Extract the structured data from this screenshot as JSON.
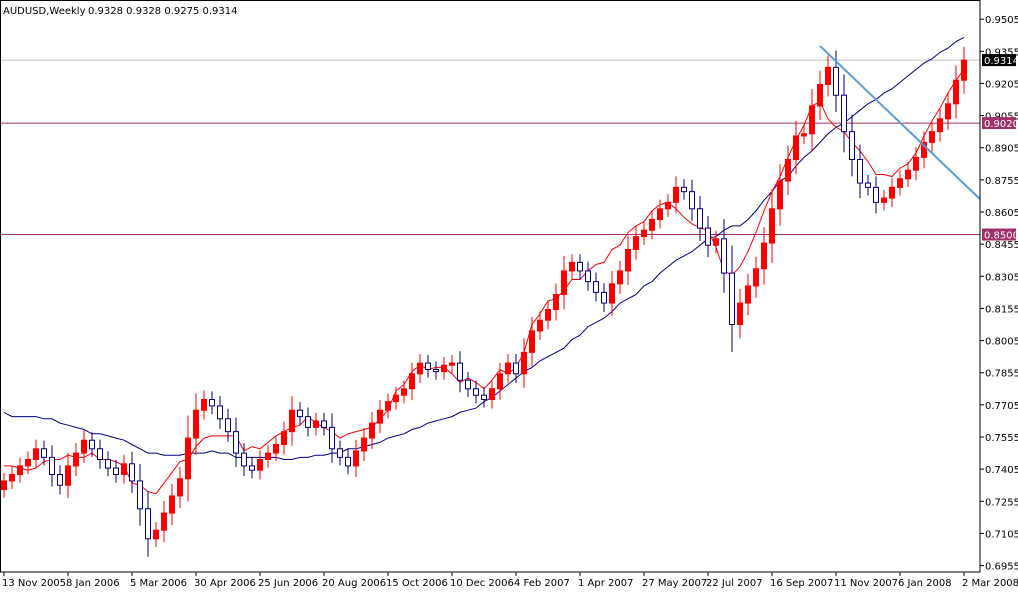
{
  "header": {
    "symbol": "AUDUSD,Weekly",
    "ohlc": "0.9328 0.9328 0.9275 0.9314"
  },
  "colors": {
    "background": "#ffffff",
    "frame": "#000000",
    "bull_candle": "#ff0000",
    "bear_candle": "#000080",
    "ma_fast": "#ff0000",
    "ma_slow": "#000080",
    "trendline": "#5b9bd5",
    "horizontal_level": "#a0306a",
    "current_price_line": "#c0c0c0"
  },
  "chart_data": {
    "type": "candlestick",
    "title": "AUDUSD,Weekly",
    "timeframe": "Weekly",
    "ylim": [
      0.6925,
      0.9585
    ],
    "y_tick_labels": [
      "0.9505",
      "0.9355",
      "0.9205",
      "0.9055",
      "0.8905",
      "0.8755",
      "0.8605",
      "0.8455",
      "0.8305",
      "0.8155",
      "0.8005",
      "0.7855",
      "0.7705",
      "0.7555",
      "0.7405",
      "0.7255",
      "0.7105",
      "0.6955"
    ],
    "x_tick_labels": [
      "13 Nov 2005",
      "8 Jan 2006",
      "5 Mar 2006",
      "30 Apr 2006",
      "25 Jun 2006",
      "20 Aug 2006",
      "15 Oct 2006",
      "10 Dec 2006",
      "4 Feb 2007",
      "1 Apr 2007",
      "27 May 2007",
      "22 Jul 2007",
      "16 Sep 2007",
      "11 Nov 2007",
      "6 Jan 2008",
      "2 Mar 2008"
    ],
    "x_tick_weeks": [
      0,
      8,
      16,
      24,
      32,
      40,
      48,
      56,
      64,
      72,
      80,
      88,
      96,
      104,
      112,
      120
    ],
    "last_week_index": 120,
    "last_price": 0.9314,
    "horizontal_levels": [
      {
        "value": 0.902,
        "label": "0.9020"
      },
      {
        "value": 0.85,
        "label": "0.8500"
      }
    ],
    "current_price_label": "0.9314",
    "trendline": {
      "start": {
        "week": 102,
        "price": 0.938
      },
      "end": {
        "week": 125,
        "price": 0.8665
      }
    },
    "grid": false,
    "legend": "none",
    "weeks_per_tick": 8,
    "close_values": [
      0.735,
      0.738,
      0.742,
      0.745,
      0.75,
      0.746,
      0.738,
      0.733,
      0.742,
      0.748,
      0.754,
      0.75,
      0.745,
      0.741,
      0.738,
      0.743,
      0.735,
      0.722,
      0.708,
      0.712,
      0.72,
      0.728,
      0.736,
      0.755,
      0.768,
      0.773,
      0.77,
      0.764,
      0.758,
      0.748,
      0.742,
      0.74,
      0.745,
      0.748,
      0.752,
      0.758,
      0.768,
      0.765,
      0.76,
      0.763,
      0.76,
      0.75,
      0.746,
      0.742,
      0.749,
      0.755,
      0.762,
      0.768,
      0.772,
      0.775,
      0.778,
      0.785,
      0.79,
      0.787,
      0.786,
      0.789,
      0.79,
      0.782,
      0.778,
      0.775,
      0.773,
      0.778,
      0.785,
      0.79,
      0.785,
      0.795,
      0.805,
      0.81,
      0.815,
      0.822,
      0.833,
      0.837,
      0.833,
      0.828,
      0.823,
      0.818,
      0.827,
      0.833,
      0.843,
      0.849,
      0.852,
      0.857,
      0.862,
      0.865,
      0.872,
      0.87,
      0.862,
      0.853,
      0.845,
      0.848,
      0.832,
      0.808,
      0.818,
      0.826,
      0.834,
      0.846,
      0.862,
      0.875,
      0.885,
      0.896,
      0.897,
      0.91,
      0.92,
      0.928,
      0.915,
      0.898,
      0.885,
      0.874,
      0.872,
      0.865,
      0.867,
      0.872,
      0.876,
      0.88,
      0.886,
      0.893,
      0.898,
      0.904,
      0.911,
      0.922,
      0.9314
    ],
    "ma_fast_values": [
      0.742,
      0.742,
      0.741,
      0.74,
      0.741,
      0.744,
      0.745,
      0.745,
      0.747,
      0.746,
      0.746,
      0.748,
      0.745,
      0.745,
      0.744,
      0.742,
      0.734,
      0.733,
      0.73,
      0.729,
      0.734,
      0.739,
      0.744,
      0.745,
      0.751,
      0.755,
      0.756,
      0.756,
      0.756,
      0.756,
      0.749,
      0.751,
      0.75,
      0.753,
      0.756,
      0.758,
      0.76,
      0.761,
      0.765,
      0.762,
      0.76,
      0.758,
      0.755,
      0.757,
      0.758,
      0.759,
      0.76,
      0.764,
      0.768,
      0.777,
      0.78,
      0.786,
      0.789,
      0.787,
      0.788,
      0.788,
      0.785,
      0.781,
      0.783,
      0.781,
      0.778,
      0.782,
      0.787,
      0.785,
      0.788,
      0.795,
      0.808,
      0.813,
      0.819,
      0.82,
      0.824,
      0.829,
      0.829,
      0.833,
      0.836,
      0.837,
      0.843,
      0.845,
      0.851,
      0.854,
      0.856,
      0.861,
      0.864,
      0.865,
      0.862,
      0.858,
      0.855,
      0.853,
      0.852,
      0.844,
      0.833,
      0.831,
      0.835,
      0.842,
      0.851,
      0.861,
      0.87,
      0.877,
      0.886,
      0.894,
      0.901,
      0.91,
      0.912,
      0.904,
      0.9,
      0.898,
      0.893,
      0.889,
      0.884,
      0.878,
      0.878,
      0.877,
      0.881,
      0.883,
      0.888,
      0.896,
      0.903,
      0.909,
      0.916,
      0.922,
      0.927
    ],
    "ma_slow_values": [
      0.767,
      0.765,
      0.765,
      0.765,
      0.765,
      0.764,
      0.764,
      0.762,
      0.761,
      0.76,
      0.759,
      0.757,
      0.757,
      0.756,
      0.755,
      0.754,
      0.752,
      0.75,
      0.748,
      0.748,
      0.747,
      0.747,
      0.747,
      0.748,
      0.748,
      0.748,
      0.749,
      0.748,
      0.748,
      0.746,
      0.746,
      0.746,
      0.746,
      0.746,
      0.746,
      0.745,
      0.745,
      0.746,
      0.746,
      0.747,
      0.747,
      0.748,
      0.748,
      0.75,
      0.75,
      0.751,
      0.752,
      0.753,
      0.755,
      0.756,
      0.757,
      0.759,
      0.76,
      0.762,
      0.763,
      0.764,
      0.765,
      0.767,
      0.768,
      0.769,
      0.772,
      0.774,
      0.777,
      0.78,
      0.783,
      0.786,
      0.788,
      0.791,
      0.793,
      0.795,
      0.797,
      0.801,
      0.803,
      0.807,
      0.809,
      0.811,
      0.814,
      0.818,
      0.82,
      0.822,
      0.826,
      0.828,
      0.832,
      0.835,
      0.838,
      0.84,
      0.842,
      0.845,
      0.848,
      0.849,
      0.852,
      0.854,
      0.854,
      0.857,
      0.861,
      0.866,
      0.87,
      0.875,
      0.877,
      0.882,
      0.886,
      0.889,
      0.893,
      0.897,
      0.9,
      0.902,
      0.905,
      0.908,
      0.911,
      0.913,
      0.916,
      0.918,
      0.921,
      0.924,
      0.927,
      0.93,
      0.932,
      0.935,
      0.937,
      0.94,
      0.942
    ]
  }
}
